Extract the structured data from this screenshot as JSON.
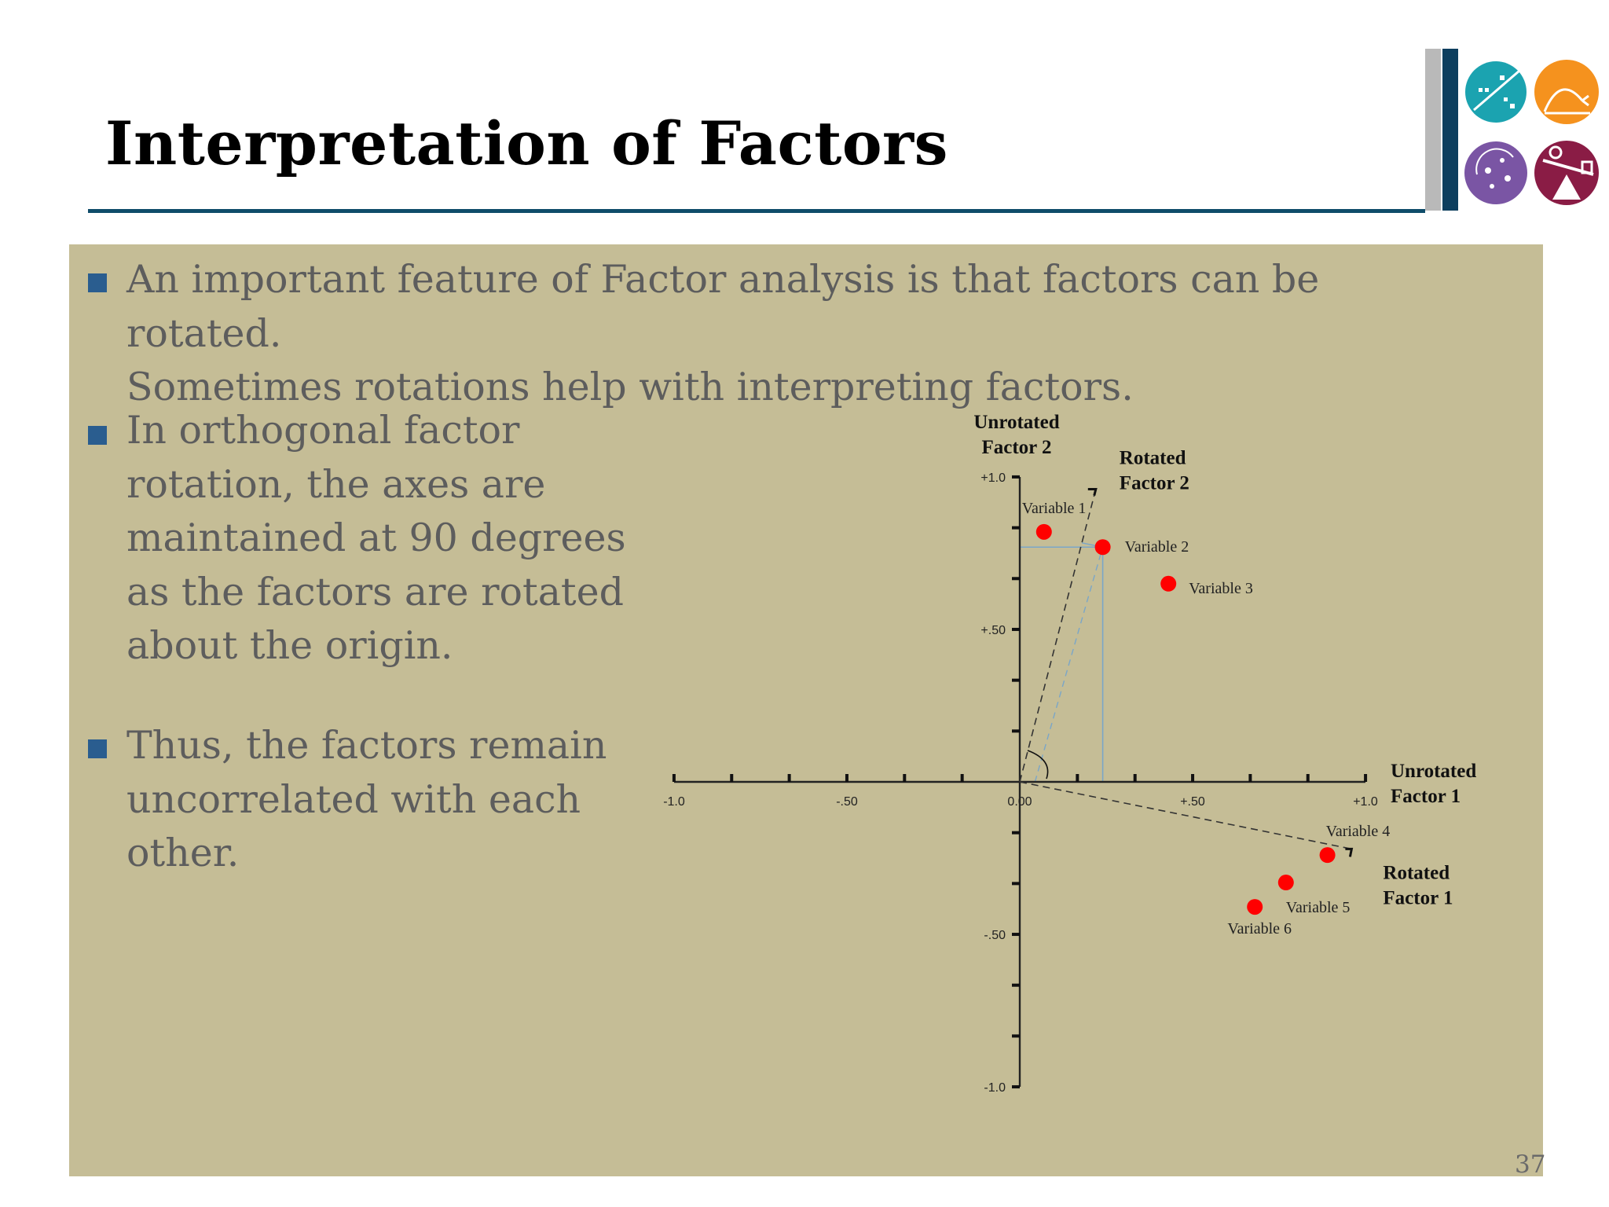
{
  "slide": {
    "title": "Interpretation of Factors",
    "page_number": "37",
    "colors": {
      "panel": "#c5bd96",
      "bullet": "#2a5d8f",
      "title_rule": "#0f4c6a",
      "point": "#ff0000"
    },
    "logo_icons": [
      "teal-scatter-icon",
      "orange-curve-icon",
      "purple-cluster-icon",
      "maroon-balance-icon"
    ]
  },
  "bullets": [
    {
      "text": "An important feature of Factor analysis is that factors can be rotated.\nSometimes rotations help with interpreting factors."
    },
    {
      "text": "In orthogonal factor\nrotation, the axes are\nmaintained at 90 degrees\nas the factors are rotated\nabout the origin."
    },
    {
      "text": "Thus, the factors remain\nuncorrelated with each\nother."
    }
  ],
  "chart_data": {
    "type": "scatter",
    "xlim": [
      -1.0,
      1.0
    ],
    "ylim": [
      -1.0,
      1.0
    ],
    "x_ticks": [
      {
        "value": -1.0,
        "label": "-1.0"
      },
      {
        "value": -0.5,
        "label": "-.50"
      },
      {
        "value": 0.0,
        "label": "0.00"
      },
      {
        "value": 0.5,
        "label": "+.50"
      },
      {
        "value": 1.0,
        "label": "+1.0"
      }
    ],
    "y_ticks": [
      {
        "value": 1.0,
        "label": "+1.0"
      },
      {
        "value": 0.5,
        "label": "+.50"
      },
      {
        "value": -0.5,
        "label": "-.50"
      },
      {
        "value": -1.0,
        "label": "-1.0"
      }
    ],
    "minor_tick_step": 0.1667,
    "axis_labels": {
      "unrotated_factor_2": [
        "Unrotated",
        "Factor 2"
      ],
      "rotated_factor_2": [
        "Rotated",
        "Factor 2"
      ],
      "unrotated_factor_1": [
        "Unrotated",
        "Factor 1"
      ],
      "rotated_factor_1": [
        "Rotated",
        "Factor 1"
      ]
    },
    "rotated_axis_2_end": {
      "x": 0.22,
      "y": 0.96
    },
    "rotated_axis_1_end": {
      "x": 0.96,
      "y": -0.22
    },
    "points": [
      {
        "name": "Variable 1",
        "x": 0.07,
        "y": 0.82
      },
      {
        "name": "Variable 2",
        "x": 0.24,
        "y": 0.77
      },
      {
        "name": "Variable 3",
        "x": 0.43,
        "y": 0.65
      },
      {
        "name": "Variable 4",
        "x": 0.89,
        "y": -0.24
      },
      {
        "name": "Variable 5",
        "x": 0.77,
        "y": -0.33
      },
      {
        "name": "Variable 6",
        "x": 0.68,
        "y": -0.41
      }
    ],
    "projection_of": "Variable 2"
  }
}
